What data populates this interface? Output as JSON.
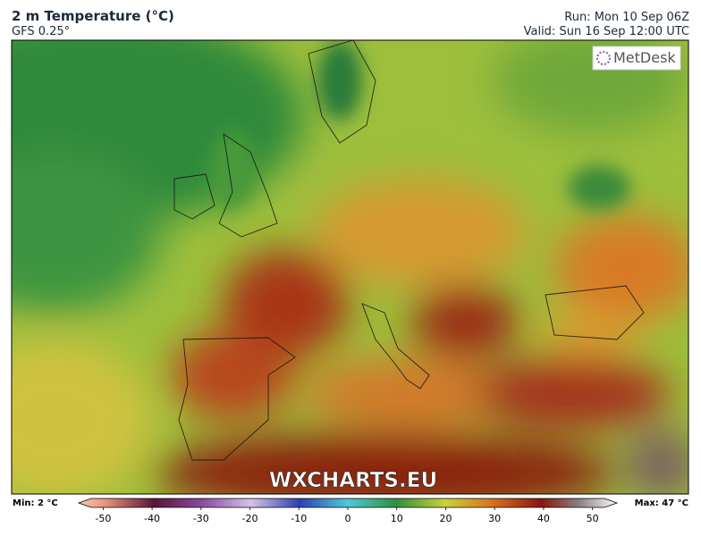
{
  "header": {
    "title": "2 m Temperature (°C)",
    "model": "GFS 0.25°",
    "run": "Run: Mon 10 Sep 06Z",
    "valid": "Valid: Sun 16 Sep 12:00 UTC"
  },
  "logo": "MetDesk",
  "watermark": "WXCHARTS.EU",
  "colorbar": {
    "min_label": "Min: 2 °C",
    "max_label": "Max: 47 °C",
    "range": [
      -55,
      55
    ],
    "ticks": [
      -50,
      -40,
      -30,
      -20,
      -10,
      0,
      10,
      20,
      30,
      40,
      50
    ]
  }
}
